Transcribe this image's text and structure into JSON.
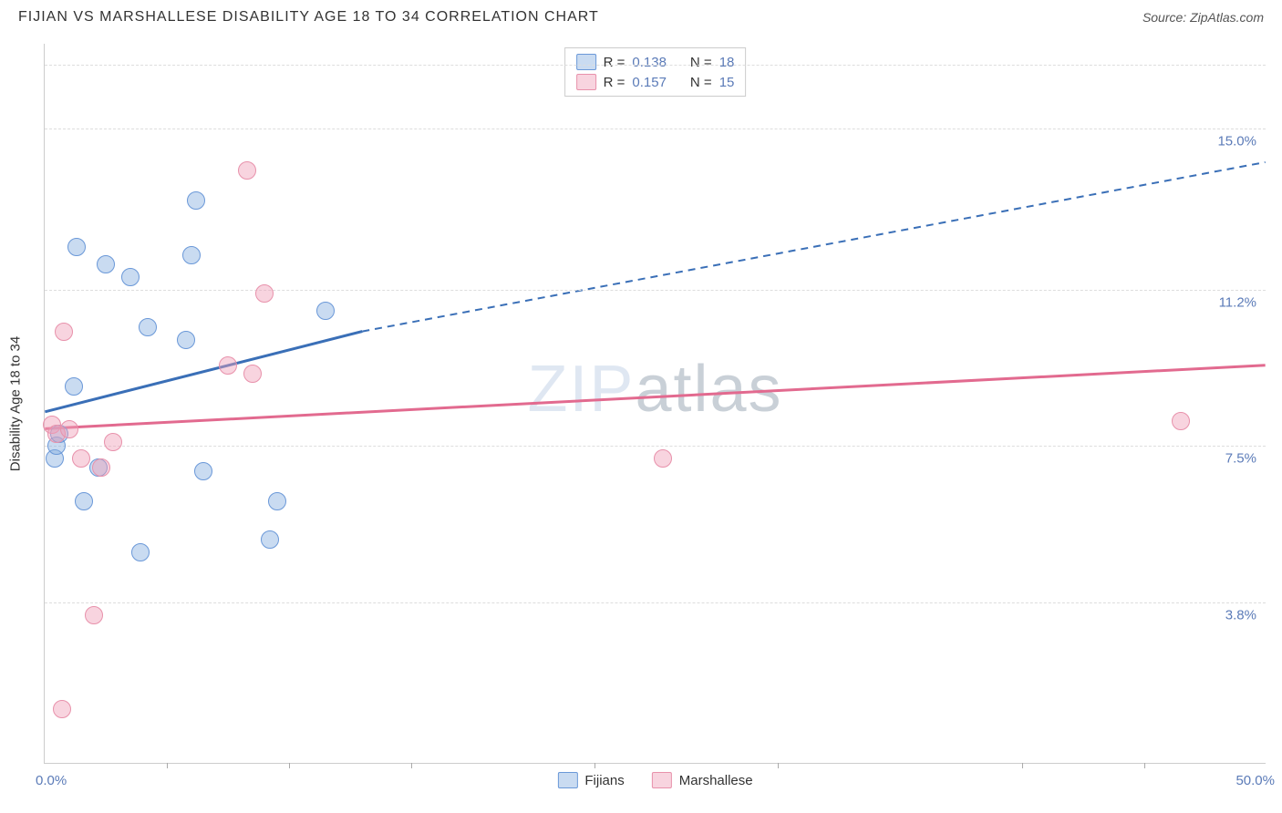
{
  "title": "FIJIAN VS MARSHALLESE DISABILITY AGE 18 TO 34 CORRELATION CHART",
  "source": "Source: ZipAtlas.com",
  "watermark": "ZIPatlas",
  "chart": {
    "type": "scatter",
    "yaxis_title": "Disability Age 18 to 34",
    "xlim": [
      0,
      50
    ],
    "ylim": [
      0,
      17
    ],
    "x_label_min": "0.0%",
    "x_label_max": "50.0%",
    "x_ticks": [
      5,
      10,
      15,
      22.5,
      30,
      40,
      45
    ],
    "y_gridlines": [
      {
        "val": 3.8,
        "label": "3.8%"
      },
      {
        "val": 7.5,
        "label": "7.5%"
      },
      {
        "val": 11.2,
        "label": "11.2%"
      },
      {
        "val": 15.0,
        "label": "15.0%"
      },
      {
        "val": 16.5,
        "label": ""
      }
    ],
    "grid_color": "#dddddd",
    "axis_color": "#cccccc",
    "point_radius": 10,
    "series": [
      {
        "name": "Fijians",
        "fill": "rgba(135, 175, 225, 0.45)",
        "stroke": "#6a98d8",
        "line_color": "#3a6fb7",
        "r_value": "0.138",
        "n_value": "18",
        "trend": {
          "x1": 0,
          "y1": 8.3,
          "x2_solid": 13,
          "y2_solid": 10.2,
          "x2": 50,
          "y2": 14.2
        },
        "points": [
          {
            "x": 0.4,
            "y": 7.2
          },
          {
            "x": 0.5,
            "y": 7.5
          },
          {
            "x": 0.6,
            "y": 7.8
          },
          {
            "x": 1.2,
            "y": 8.9
          },
          {
            "x": 1.3,
            "y": 12.2
          },
          {
            "x": 2.5,
            "y": 11.8
          },
          {
            "x": 1.6,
            "y": 6.2
          },
          {
            "x": 2.2,
            "y": 7.0
          },
          {
            "x": 3.5,
            "y": 11.5
          },
          {
            "x": 4.2,
            "y": 10.3
          },
          {
            "x": 3.9,
            "y": 5.0
          },
          {
            "x": 6.0,
            "y": 12.0
          },
          {
            "x": 6.2,
            "y": 13.3
          },
          {
            "x": 5.8,
            "y": 10.0
          },
          {
            "x": 6.5,
            "y": 6.9
          },
          {
            "x": 9.2,
            "y": 5.3
          },
          {
            "x": 9.5,
            "y": 6.2
          },
          {
            "x": 11.5,
            "y": 10.7
          }
        ]
      },
      {
        "name": "Marshallese",
        "fill": "rgba(240, 160, 185, 0.45)",
        "stroke": "#e891ab",
        "line_color": "#e26a8f",
        "r_value": "0.157",
        "n_value": "15",
        "trend": {
          "x1": 0,
          "y1": 7.9,
          "x2_solid": 50,
          "y2_solid": 9.4,
          "x2": 50,
          "y2": 9.4
        },
        "points": [
          {
            "x": 0.3,
            "y": 8.0
          },
          {
            "x": 0.5,
            "y": 7.8
          },
          {
            "x": 0.8,
            "y": 10.2
          },
          {
            "x": 0.7,
            "y": 1.3
          },
          {
            "x": 1.5,
            "y": 7.2
          },
          {
            "x": 2.0,
            "y": 3.5
          },
          {
            "x": 2.8,
            "y": 7.6
          },
          {
            "x": 2.3,
            "y": 7.0
          },
          {
            "x": 7.5,
            "y": 9.4
          },
          {
            "x": 8.5,
            "y": 9.2
          },
          {
            "x": 8.3,
            "y": 14.0
          },
          {
            "x": 9.0,
            "y": 11.1
          },
          {
            "x": 25.3,
            "y": 7.2
          },
          {
            "x": 46.5,
            "y": 8.1
          },
          {
            "x": 1.0,
            "y": 7.9
          }
        ]
      }
    ]
  },
  "legend_top_prefix_r": "R =",
  "legend_top_prefix_n": "N ="
}
